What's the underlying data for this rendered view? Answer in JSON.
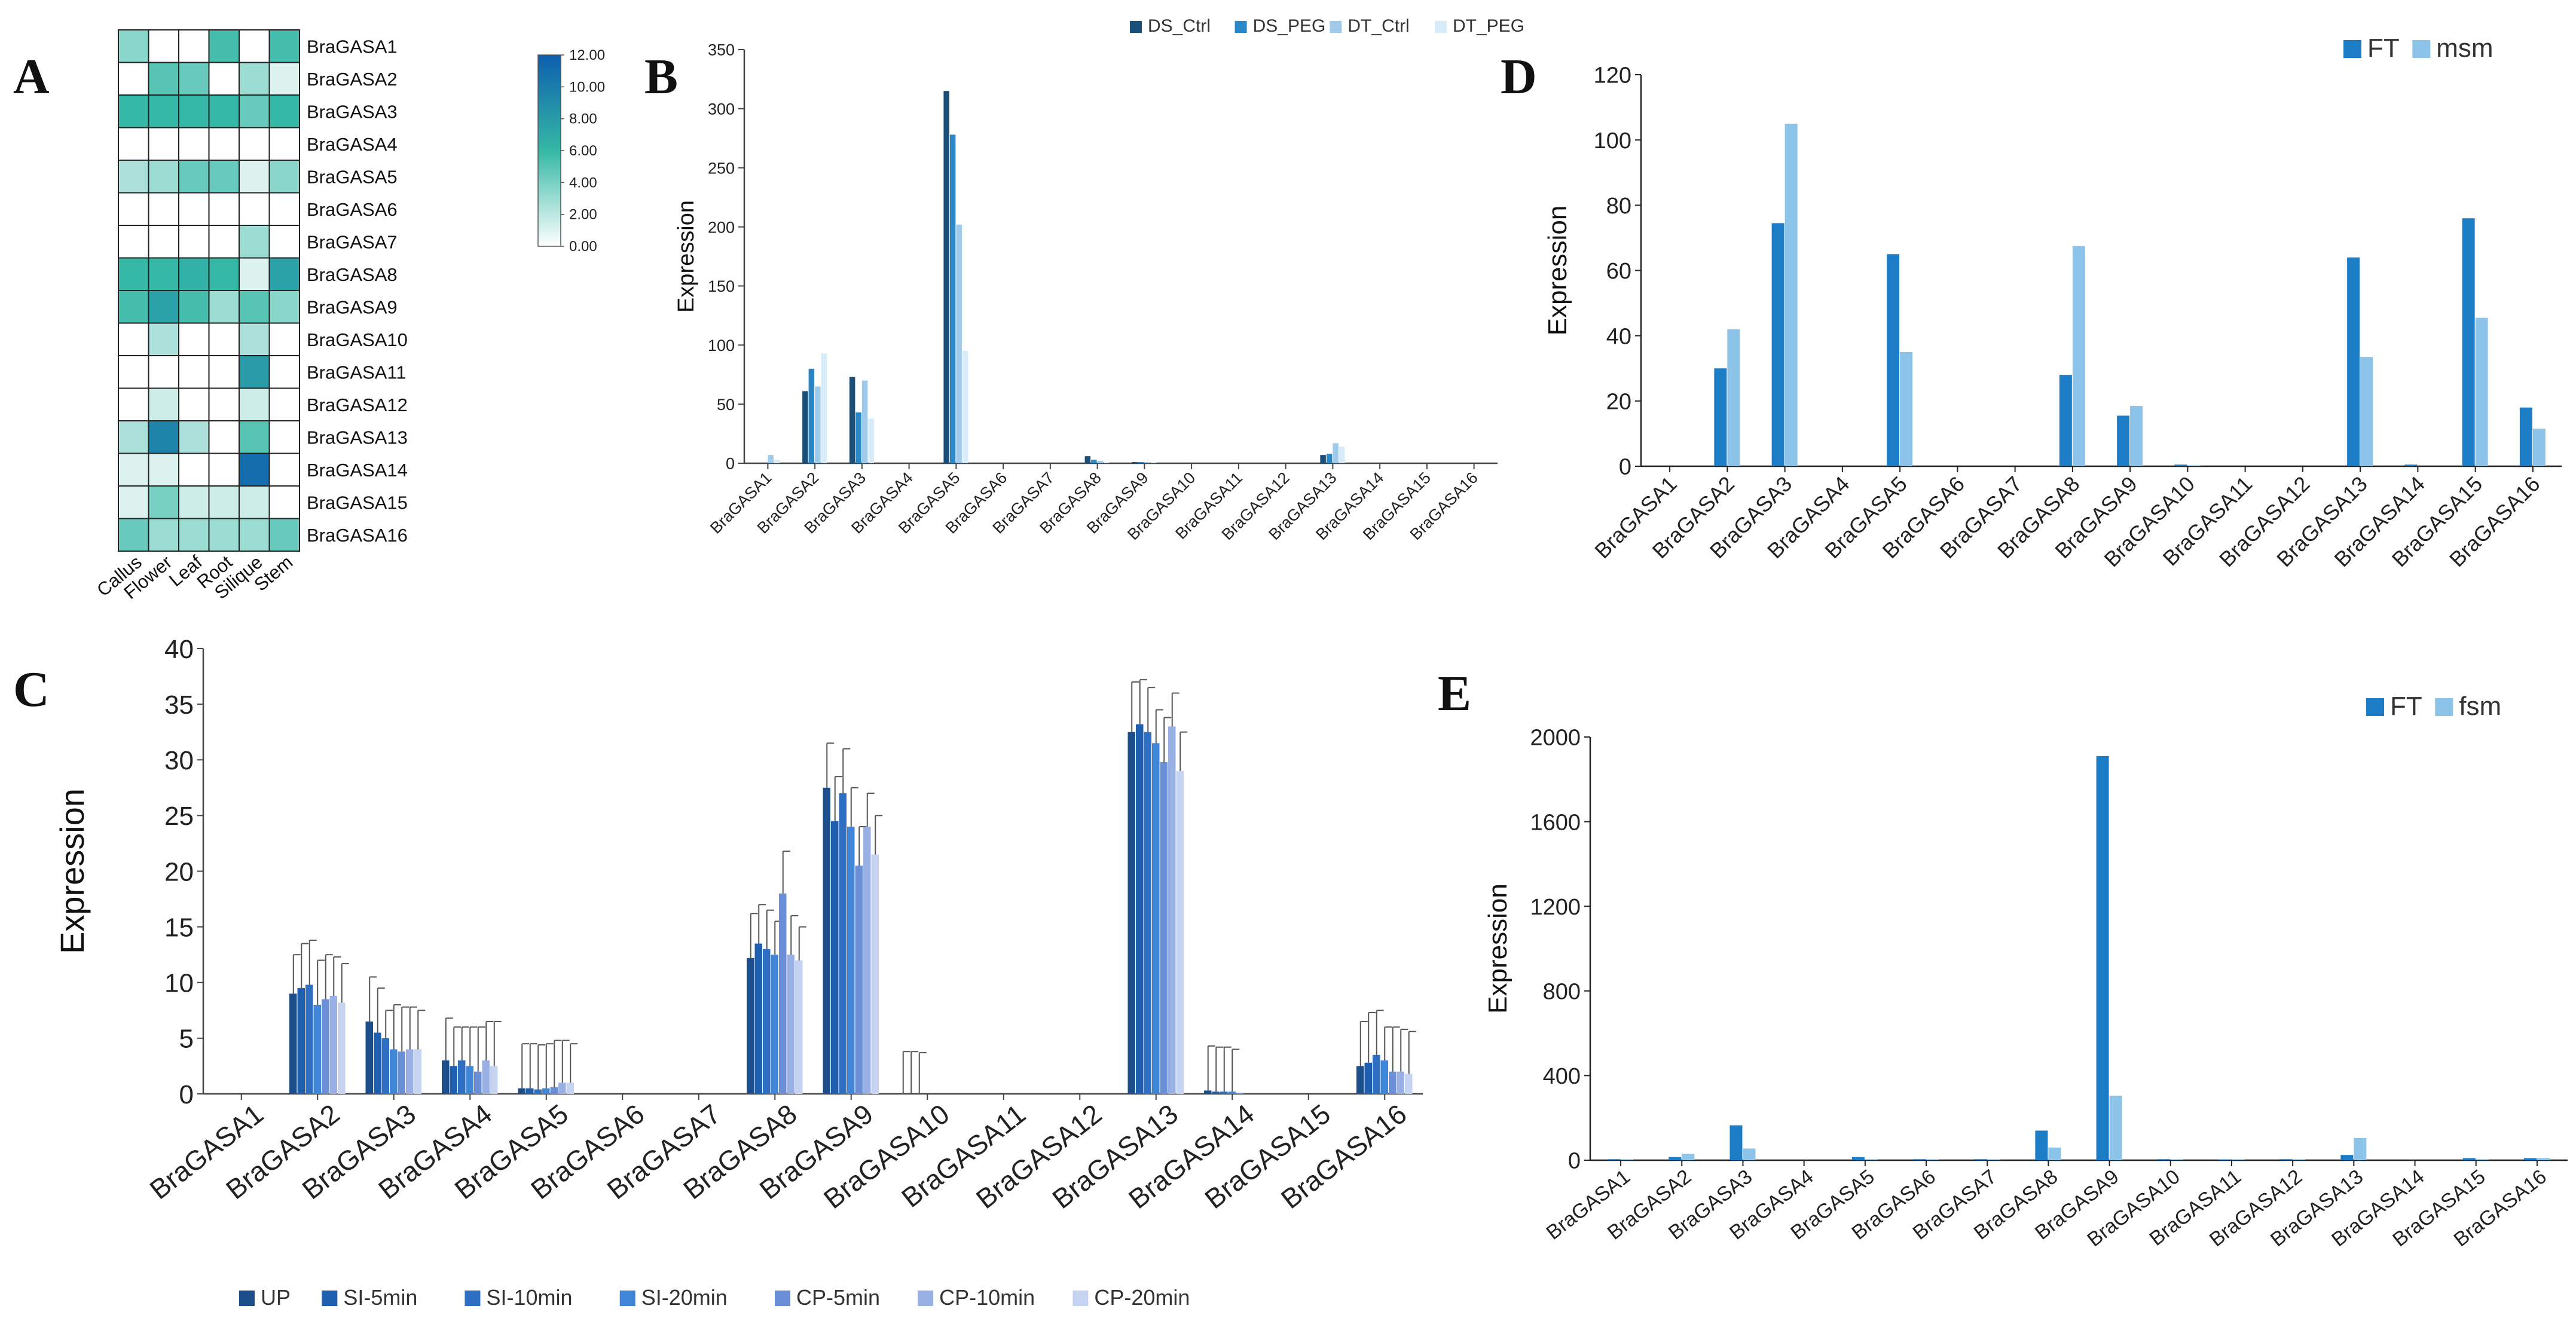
{
  "figure": {
    "panel_letters": [
      "A",
      "B",
      "C",
      "D",
      "E"
    ]
  },
  "colors": {
    "heat_low": "#ffffff",
    "heat_high": "#0d5fae",
    "heat_mid": "#35b8a5",
    "B": [
      "#1a4f7a",
      "#2a87c8",
      "#9fcaea",
      "#d8ebf8"
    ],
    "C": [
      "#1b4e8a",
      "#1f5fb0",
      "#2e6fc4",
      "#3f85d8",
      "#6b8fd6",
      "#99b0e4",
      "#c5d3f1"
    ],
    "D": [
      "#1d7cc6",
      "#8cc3e8"
    ],
    "E": [
      "#1d7cc6",
      "#8cc3e8"
    ]
  },
  "chart_data": [
    {
      "panel": "A",
      "type": "heatmap",
      "rows": [
        "BraGASA1",
        "BraGASA2",
        "BraGASA3",
        "BraGASA4",
        "BraGASA5",
        "BraGASA6",
        "BraGASA7",
        "BraGASA8",
        "BraGASA9",
        "BraGASA10",
        "BraGASA11",
        "BraGASA12",
        "BraGASA13",
        "BraGASA14",
        "BraGASA15",
        "BraGASA16"
      ],
      "columns": [
        "Callus",
        "Flower",
        "Leaf",
        "Root",
        "Silique",
        "Stem"
      ],
      "values": [
        [
          3.5,
          0,
          0,
          5.5,
          0,
          5.5
        ],
        [
          0,
          5,
          4.5,
          0,
          3,
          1
        ],
        [
          6,
          6,
          6,
          6,
          4.5,
          6
        ],
        [
          0,
          0,
          0,
          0,
          0,
          0
        ],
        [
          2.5,
          3,
          4.5,
          4.5,
          1,
          3.5
        ],
        [
          0,
          0,
          0,
          0,
          0,
          0
        ],
        [
          0,
          0,
          0,
          0,
          3,
          0
        ],
        [
          6,
          6,
          6.5,
          6,
          1,
          7.5
        ],
        [
          5.5,
          7.5,
          5.5,
          3,
          5,
          3.5
        ],
        [
          0,
          2.5,
          0,
          0,
          2.5,
          0
        ],
        [
          0,
          0,
          0,
          0,
          8,
          0
        ],
        [
          0,
          1.5,
          0,
          0,
          1.5,
          0
        ],
        [
          2.5,
          9.5,
          2.5,
          0,
          5,
          0
        ],
        [
          1,
          1,
          0,
          0,
          11,
          0
        ],
        [
          1,
          4,
          1.5,
          1.5,
          1.5,
          0
        ],
        [
          4.5,
          3,
          3,
          3,
          3,
          4.5
        ]
      ],
      "colorbar": {
        "min": 0,
        "max": 12,
        "ticks": [
          "12.00",
          "10.00",
          "8.00",
          "6.00",
          "4.00",
          "2.00",
          "0.00"
        ]
      }
    },
    {
      "panel": "B",
      "type": "bar",
      "categories": [
        "BraGASA1",
        "BraGASA2",
        "BraGASA3",
        "BraGASA4",
        "BraGASA5",
        "BraGASA6",
        "BraGASA7",
        "BraGASA8",
        "BraGASA9",
        "BraGASA10",
        "BraGASA11",
        "BraGASA12",
        "BraGASA13",
        "BraGASA14",
        "BraGASA15",
        "BraGASA16"
      ],
      "series": [
        {
          "name": "DS_Ctrl",
          "values": [
            0,
            61,
            73,
            0,
            315,
            0,
            0,
            6,
            1,
            0,
            0,
            0,
            7,
            0,
            0,
            0
          ]
        },
        {
          "name": "DS_PEG",
          "values": [
            0,
            80,
            43,
            0,
            278,
            0,
            0,
            3,
            1,
            0,
            0,
            0,
            8,
            0,
            0,
            0
          ]
        },
        {
          "name": "DT_Ctrl",
          "values": [
            7,
            65,
            70,
            0,
            202,
            0,
            0,
            2,
            1,
            0,
            0,
            0,
            17,
            0,
            0,
            0
          ]
        },
        {
          "name": "DT_PEG",
          "values": [
            3,
            93,
            38,
            0,
            95,
            0,
            0,
            1,
            1,
            0,
            0,
            0,
            14,
            0,
            0,
            0
          ]
        }
      ],
      "xlabel": "",
      "ylabel": "Expression",
      "ylim": [
        0,
        350
      ],
      "yticks": [
        "0",
        "50",
        "100",
        "150",
        "200",
        "250",
        "300",
        "350"
      ],
      "legend": "top"
    },
    {
      "panel": "C",
      "type": "bar",
      "categories": [
        "BraGASA1",
        "BraGASA2",
        "BraGASA3",
        "BraGASA4",
        "BraGASA5",
        "BraGASA6",
        "BraGASA7",
        "BraGASA8",
        "BraGASA9",
        "BraGASA10",
        "BraGASA11",
        "BraGASA12",
        "BraGASA13",
        "BraGASA14",
        "BraGASA15",
        "BraGASA16"
      ],
      "series": [
        {
          "name": "UP",
          "values": [
            0,
            9,
            6.5,
            3,
            0.5,
            0,
            0,
            12.2,
            27.5,
            0,
            0,
            0,
            32.5,
            0.3,
            0,
            2.5
          ],
          "errors": [
            0,
            3.5,
            4,
            3.8,
            4,
            0,
            0,
            4,
            4,
            3.8,
            0,
            0,
            4.5,
            4,
            0,
            4
          ]
        },
        {
          "name": "SI-5min",
          "values": [
            0,
            9.5,
            5.5,
            2.5,
            0.5,
            0,
            0,
            13.5,
            24.5,
            0,
            0,
            0,
            33.2,
            0.2,
            0,
            2.8
          ],
          "errors": [
            0,
            4,
            4,
            3.5,
            4,
            0,
            0,
            3.5,
            4,
            3.8,
            0,
            0,
            4,
            4,
            0,
            4.5
          ]
        },
        {
          "name": "SI-10min",
          "values": [
            0,
            9.8,
            5,
            3,
            0.4,
            0,
            0,
            13,
            27,
            0,
            0,
            0,
            32.5,
            0.2,
            0,
            3.5
          ],
          "errors": [
            0,
            4,
            2.5,
            3,
            4,
            0,
            0,
            3.5,
            4,
            3.7,
            0,
            0,
            4,
            4,
            0,
            4
          ]
        },
        {
          "name": "SI-20min",
          "values": [
            0,
            8,
            4,
            2.5,
            0.5,
            0,
            0,
            12.5,
            24,
            0,
            0,
            0,
            31.5,
            0.2,
            0,
            3
          ],
          "errors": [
            0,
            4,
            4,
            3.5,
            4,
            0,
            0,
            3,
            3.5,
            0,
            0,
            0,
            3,
            3.8,
            0,
            3
          ]
        },
        {
          "name": "CP-5min",
          "values": [
            0,
            8.5,
            3.8,
            2,
            0.6,
            0,
            0,
            18,
            20.5,
            0,
            0,
            0,
            29.8,
            0.1,
            0,
            2
          ],
          "errors": [
            0,
            4,
            4,
            4,
            4.2,
            0,
            0,
            3.8,
            3.5,
            0,
            0,
            0,
            4,
            0,
            0,
            4
          ]
        },
        {
          "name": "CP-10min",
          "values": [
            0,
            8.8,
            4,
            3,
            1,
            0,
            0,
            12.5,
            24,
            0,
            0,
            0,
            33,
            0,
            0,
            2
          ],
          "errors": [
            0,
            3.5,
            3.8,
            3.5,
            3.8,
            0,
            0,
            3.5,
            3,
            0,
            0,
            0,
            3,
            0,
            0,
            3.8
          ]
        },
        {
          "name": "CP-20min",
          "values": [
            0,
            8.2,
            4,
            2.5,
            1,
            0,
            0,
            12,
            21.5,
            0,
            0,
            0,
            29,
            0,
            0,
            1.8
          ],
          "errors": [
            0,
            3.5,
            3.5,
            4,
            3.5,
            0,
            0,
            3,
            3.5,
            0,
            0,
            0,
            3.5,
            0,
            0,
            3.8
          ]
        }
      ],
      "xlabel": "",
      "ylabel": "Expression",
      "ylim": [
        0,
        40
      ],
      "yticks": [
        "0",
        "5",
        "10",
        "15",
        "20",
        "25",
        "30",
        "35",
        "40"
      ],
      "legend": "bottom"
    },
    {
      "panel": "D",
      "type": "bar",
      "categories": [
        "BraGASA1",
        "BraGASA2",
        "BraGASA3",
        "BraGASA4",
        "BraGASA5",
        "BraGASA6",
        "BraGASA7",
        "BraGASA8",
        "BraGASA9",
        "BraGASA10",
        "BraGASA11",
        "BraGASA12",
        "BraGASA13",
        "BraGASA14",
        "BraGASA15",
        "BraGASA16"
      ],
      "series": [
        {
          "name": "FT",
          "values": [
            0,
            30,
            74.5,
            0,
            65,
            0,
            0,
            28,
            15.5,
            0.5,
            0,
            0,
            64,
            0.5,
            76,
            18
          ]
        },
        {
          "name": "msm",
          "values": [
            0,
            42,
            105,
            0,
            35,
            0,
            0,
            67.5,
            18.5,
            0.3,
            0,
            0,
            33.5,
            0,
            45.5,
            11.5
          ]
        }
      ],
      "xlabel": "",
      "ylabel": "Expression",
      "ylim": [
        0,
        120
      ],
      "yticks": [
        "0",
        "20",
        "40",
        "60",
        "80",
        "100",
        "120"
      ],
      "legend": "top-right"
    },
    {
      "panel": "E",
      "type": "bar",
      "categories": [
        "BraGASA1",
        "BraGASA2",
        "BraGASA3",
        "BraGASA4",
        "BraGASA5",
        "BraGASA6",
        "BraGASA7",
        "BraGASA8",
        "BraGASA9",
        "BraGASA10",
        "BraGASA11",
        "BraGASA12",
        "BraGASA13",
        "BraGASA14",
        "BraGASA15",
        "BraGASA16"
      ],
      "series": [
        {
          "name": "FT",
          "values": [
            5,
            15,
            165,
            0,
            15,
            5,
            5,
            140,
            1910,
            5,
            3,
            5,
            25,
            0,
            10,
            10
          ]
        },
        {
          "name": "fsm",
          "values": [
            5,
            30,
            55,
            0,
            5,
            3,
            3,
            60,
            305,
            3,
            3,
            3,
            105,
            0,
            5,
            10
          ]
        }
      ],
      "xlabel": "",
      "ylabel": "Expression",
      "ylim": [
        0,
        2000
      ],
      "yticks": [
        "0",
        "400",
        "800",
        "1200",
        "1600",
        "2000"
      ],
      "legend": "top-right"
    }
  ]
}
